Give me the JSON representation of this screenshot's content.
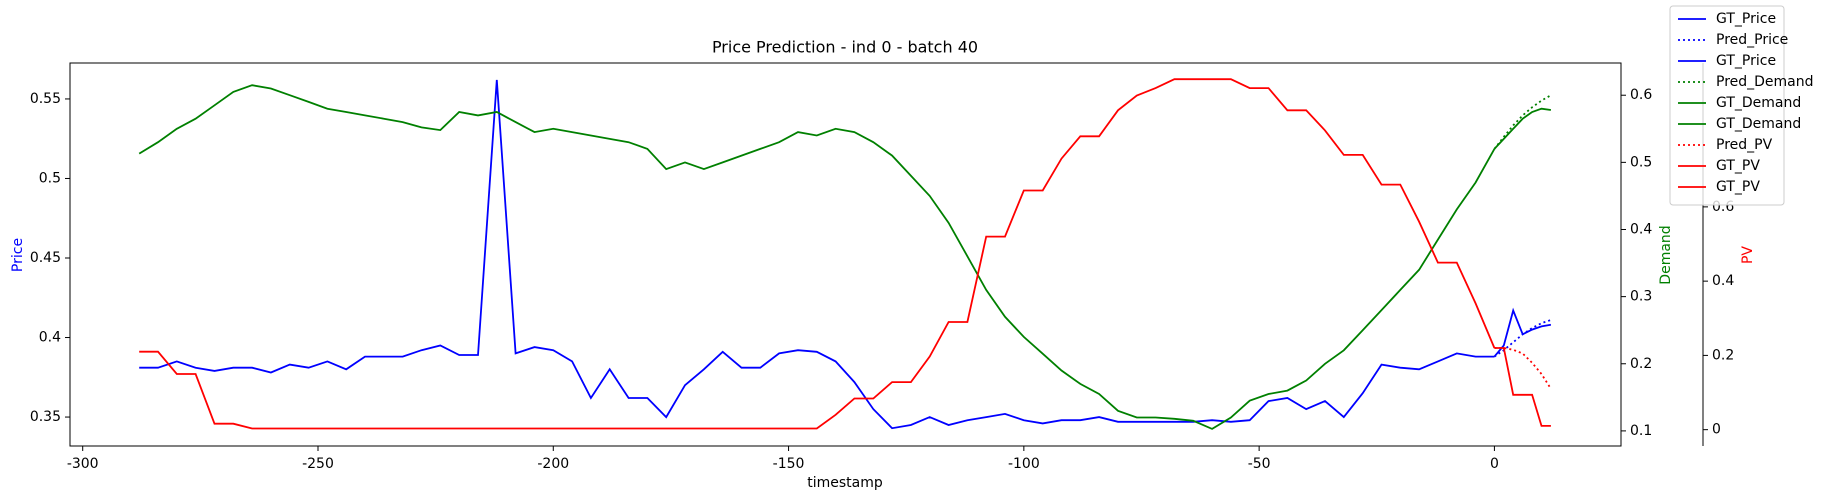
{
  "chart_data": {
    "type": "line",
    "title": "Price Prediction - ind 0 - batch 40",
    "xlabel": "timestamp",
    "ylabel": "Price",
    "y2label": "Demand",
    "y3label": "PV",
    "xlim": [
      -302.7,
      26.9
    ],
    "xticks": [
      -300,
      -250,
      -200,
      -150,
      -100,
      -50,
      0
    ],
    "ylim": [
      0.3318,
      0.5726
    ],
    "yticks": [
      0.35,
      0.4,
      0.45,
      0.5,
      0.55
    ],
    "y2lim": [
      0.0775,
      0.648
    ],
    "y2ticks": [
      0.1,
      0.2,
      0.3,
      0.4,
      0.5,
      0.6
    ],
    "y3lim": [
      -0.044,
      0.9875
    ],
    "y3ticks": [
      0.0,
      0.2,
      0.4,
      0.6
    ],
    "legend": "upper right",
    "series": [
      {
        "name": "GT_Price",
        "color": "#0000ff",
        "style": "solid",
        "axis": "y",
        "x": [
          -288,
          -284,
          -280,
          -276,
          -272,
          -268,
          -264,
          -260,
          -256,
          -252,
          -248,
          -244,
          -240,
          -236,
          -232,
          -228,
          -224,
          -220,
          -216,
          -212,
          -208,
          -204,
          -200,
          -196,
          -192,
          -188,
          -184,
          -180,
          -176,
          -172,
          -168,
          -164,
          -160,
          -156,
          -152,
          -148,
          -144,
          -140,
          -136,
          -132,
          -128,
          -124,
          -120,
          -116,
          -112,
          -108,
          -104,
          -100,
          -96,
          -92,
          -88,
          -84,
          -80,
          -76,
          -72,
          -68,
          -64,
          -60,
          -56,
          -52,
          -48,
          -44,
          -40,
          -36,
          -32,
          -28,
          -24,
          -20,
          -16,
          -12,
          -8,
          -4,
          0
        ],
        "values": [
          0.381,
          0.381,
          0.385,
          0.381,
          0.379,
          0.381,
          0.381,
          0.378,
          0.383,
          0.381,
          0.385,
          0.38,
          0.388,
          0.388,
          0.388,
          0.392,
          0.395,
          0.389,
          0.389,
          0.562,
          0.39,
          0.394,
          0.392,
          0.385,
          0.362,
          0.38,
          0.362,
          0.362,
          0.35,
          0.37,
          0.38,
          0.391,
          0.381,
          0.381,
          0.39,
          0.392,
          0.391,
          0.385,
          0.372,
          0.355,
          0.343,
          0.345,
          0.35,
          0.345,
          0.348,
          0.35,
          0.352,
          0.348,
          0.346,
          0.348,
          0.348,
          0.35,
          0.347,
          0.347,
          0.347,
          0.347,
          0.347,
          0.348,
          0.347,
          0.348,
          0.36,
          0.362,
          0.355,
          0.36,
          0.35,
          0.365,
          0.383,
          0.381,
          0.38,
          0.385,
          0.39,
          0.388,
          0.388
        ]
      },
      {
        "name": "Pred_Price",
        "color": "#0000ff",
        "style": "dotted",
        "axis": "y",
        "x": [
          0,
          2,
          4,
          6,
          8,
          10,
          12
        ],
        "values": [
          0.388,
          0.392,
          0.397,
          0.402,
          0.406,
          0.409,
          0.411
        ]
      },
      {
        "name": "GT_Price",
        "color": "#0000ff",
        "style": "solid",
        "axis": "y",
        "x": [
          0,
          2,
          4,
          6,
          8,
          10,
          12
        ],
        "values": [
          0.388,
          0.395,
          0.417,
          0.402,
          0.405,
          0.407,
          0.408
        ]
      },
      {
        "name": "Pred_Demand",
        "color": "#008000",
        "style": "dotted",
        "axis": "y2",
        "x": [
          0,
          2,
          4,
          6,
          8,
          10,
          12
        ],
        "values": [
          0.52,
          0.538,
          0.555,
          0.57,
          0.582,
          0.592,
          0.6
        ]
      },
      {
        "name": "GT_Demand",
        "color": "#008000",
        "style": "solid",
        "axis": "y2",
        "x": [
          -288,
          -284,
          -280,
          -276,
          -272,
          -268,
          -264,
          -260,
          -256,
          -252,
          -248,
          -244,
          -240,
          -236,
          -232,
          -228,
          -224,
          -220,
          -216,
          -212,
          -208,
          -204,
          -200,
          -196,
          -192,
          -188,
          -184,
          -180,
          -176,
          -172,
          -168,
          -164,
          -160,
          -156,
          -152,
          -148,
          -144,
          -140,
          -136,
          -132,
          -128,
          -124,
          -120,
          -116,
          -112,
          -108,
          -104,
          -100,
          -96,
          -92,
          -88,
          -84,
          -80,
          -76,
          -72,
          -68,
          -64,
          -60,
          -56,
          -52,
          -48,
          -44,
          -40,
          -36,
          -32,
          -28,
          -24,
          -20,
          -16,
          -12,
          -8,
          -4,
          0
        ],
        "values": [
          0.513,
          0.53,
          0.55,
          0.565,
          0.585,
          0.605,
          0.615,
          0.61,
          0.6,
          0.59,
          0.58,
          0.575,
          0.57,
          0.565,
          0.56,
          0.552,
          0.548,
          0.575,
          0.57,
          0.575,
          0.56,
          0.545,
          0.55,
          0.545,
          0.54,
          0.535,
          0.53,
          0.52,
          0.49,
          0.5,
          0.49,
          0.5,
          0.51,
          0.52,
          0.53,
          0.545,
          0.54,
          0.55,
          0.545,
          0.53,
          0.51,
          0.48,
          0.45,
          0.41,
          0.36,
          0.31,
          0.27,
          0.24,
          0.215,
          0.19,
          0.17,
          0.155,
          0.13,
          0.12,
          0.12,
          0.118,
          0.115,
          0.103,
          0.12,
          0.145,
          0.155,
          0.16,
          0.175,
          0.2,
          0.22,
          0.25,
          0.28,
          0.31,
          0.34,
          0.385,
          0.43,
          0.47,
          0.52
        ]
      },
      {
        "name": "GT_Demand",
        "color": "#008000",
        "style": "solid",
        "axis": "y2",
        "x": [
          0,
          2,
          4,
          6,
          8,
          10,
          12
        ],
        "values": [
          0.52,
          0.535,
          0.55,
          0.565,
          0.575,
          0.58,
          0.578
        ]
      },
      {
        "name": "Pred_PV",
        "color": "#ff0000",
        "style": "dotted",
        "axis": "y3",
        "x": [
          0,
          2,
          4,
          6,
          8,
          10,
          12
        ],
        "values": [
          0.22,
          0.22,
          0.215,
          0.205,
          0.18,
          0.15,
          0.11
        ]
      },
      {
        "name": "GT_PV",
        "color": "#ff0000",
        "style": "solid",
        "axis": "y3",
        "x": [
          -288,
          -284,
          -280,
          -276,
          -272,
          -268,
          -264,
          -260,
          -256,
          -252,
          -248,
          -244,
          -240,
          -236,
          -232,
          -228,
          -224,
          -220,
          -216,
          -212,
          -208,
          -204,
          -200,
          -196,
          -192,
          -188,
          -184,
          -180,
          -176,
          -172,
          -168,
          -164,
          -160,
          -156,
          -152,
          -148,
          -144,
          -140,
          -136,
          -132,
          -128,
          -124,
          -120,
          -116,
          -112,
          -108,
          -104,
          -100,
          -96,
          -92,
          -88,
          -84,
          -80,
          -76,
          -72,
          -68,
          -64,
          -60,
          -56,
          -52,
          -48,
          -44,
          -40,
          -36,
          -32,
          -28,
          -24,
          -20,
          -16,
          -12,
          -8,
          -4,
          0
        ],
        "values": [
          0.21,
          0.21,
          0.15,
          0.15,
          0.016,
          0.016,
          0.003,
          0.003,
          0.003,
          0.003,
          0.003,
          0.003,
          0.003,
          0.003,
          0.003,
          0.003,
          0.003,
          0.003,
          0.003,
          0.003,
          0.003,
          0.003,
          0.003,
          0.003,
          0.003,
          0.003,
          0.003,
          0.003,
          0.003,
          0.003,
          0.003,
          0.003,
          0.003,
          0.003,
          0.003,
          0.003,
          0.003,
          0.04,
          0.084,
          0.084,
          0.128,
          0.128,
          0.197,
          0.29,
          0.29,
          0.52,
          0.52,
          0.644,
          0.644,
          0.73,
          0.79,
          0.79,
          0.86,
          0.9,
          0.92,
          0.944,
          0.944,
          0.944,
          0.944,
          0.92,
          0.92,
          0.86,
          0.86,
          0.806,
          0.74,
          0.74,
          0.66,
          0.66,
          0.56,
          0.45,
          0.45,
          0.34,
          0.22
        ]
      },
      {
        "name": "GT_PV",
        "color": "#ff0000",
        "style": "solid",
        "axis": "y3",
        "x": [
          0,
          2,
          4,
          6,
          8,
          10,
          12
        ],
        "values": [
          0.22,
          0.22,
          0.094,
          0.094,
          0.094,
          0.01,
          0.01
        ]
      }
    ]
  }
}
